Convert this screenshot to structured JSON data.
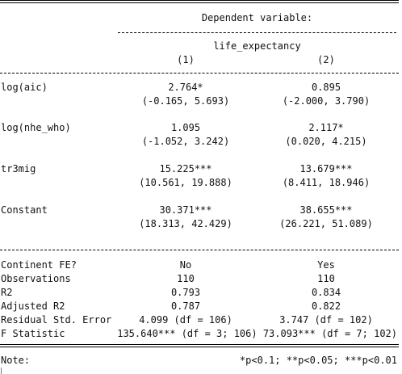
{
  "header": {
    "dependent_variable_label": "Dependent variable:",
    "dependent_variable_name": "life_expectancy",
    "model_1": "(1)",
    "model_2": "(2)"
  },
  "coefficients": [
    {
      "name": "log(aic)",
      "m1_estimate": "2.764*",
      "m1_ci": "(-0.165, 5.693)",
      "m2_estimate": "0.895",
      "m2_ci": "(-2.000, 3.790)"
    },
    {
      "name": "log(nhe_who)",
      "m1_estimate": "1.095",
      "m1_ci": "(-1.052, 3.242)",
      "m2_estimate": "2.117*",
      "m2_ci": "(0.020, 4.215)"
    },
    {
      "name": "tr3mig",
      "m1_estimate": "15.225***",
      "m1_ci": "(10.561, 19.888)",
      "m2_estimate": "13.679***",
      "m2_ci": "(8.411, 18.946)"
    },
    {
      "name": "Constant",
      "m1_estimate": "30.371***",
      "m1_ci": "(18.313, 42.429)",
      "m2_estimate": "38.655***",
      "m2_ci": "(26.221, 51.089)"
    }
  ],
  "statistics": [
    {
      "name": "Continent FE?",
      "m1": "No",
      "m2": "Yes"
    },
    {
      "name": "Observations",
      "m1": "110",
      "m2": "110"
    },
    {
      "name": "R2",
      "m1": "0.793",
      "m2": "0.834"
    },
    {
      "name": "Adjusted R2",
      "m1": "0.787",
      "m2": "0.822"
    },
    {
      "name": "Residual Std. Error",
      "m1": "4.099 (df = 106)",
      "m2": "3.747 (df = 102)"
    }
  ],
  "f_statistic": {
    "name": "F Statistic",
    "values": "135.640*** (df = 3; 106) 73.093*** (df = 7; 102)"
  },
  "note": {
    "label": "Note:",
    "text": "*p<0.1; **p<0.05; ***p<0.01"
  }
}
